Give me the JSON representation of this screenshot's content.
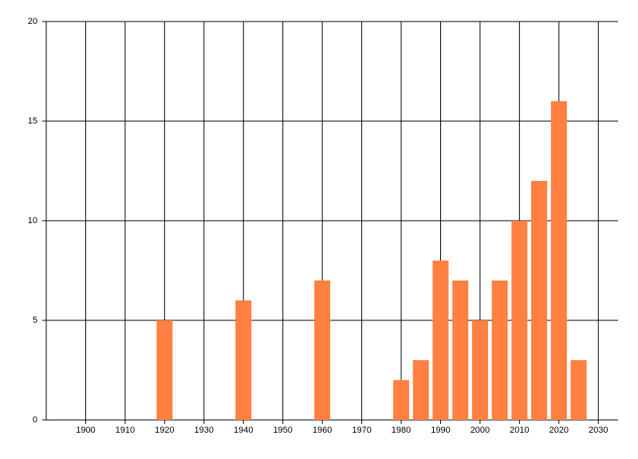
{
  "chart_data": {
    "type": "bar",
    "x": [
      1920,
      1940,
      1960,
      1980,
      1985,
      1990,
      1995,
      2000,
      2005,
      2010,
      2015,
      2020,
      2025
    ],
    "values": [
      5,
      6,
      7,
      2,
      3,
      8,
      7,
      5,
      7,
      10,
      12,
      16,
      3
    ],
    "color": "#ff8040",
    "xlim": [
      1890,
      2035
    ],
    "xticks": [
      1900,
      1910,
      1920,
      1930,
      1940,
      1950,
      1960,
      1970,
      1980,
      1990,
      2000,
      2010,
      2020,
      2030
    ],
    "ylim": [
      0,
      20
    ],
    "yticks": [
      0,
      5,
      10,
      15,
      20
    ],
    "grid": true
  }
}
